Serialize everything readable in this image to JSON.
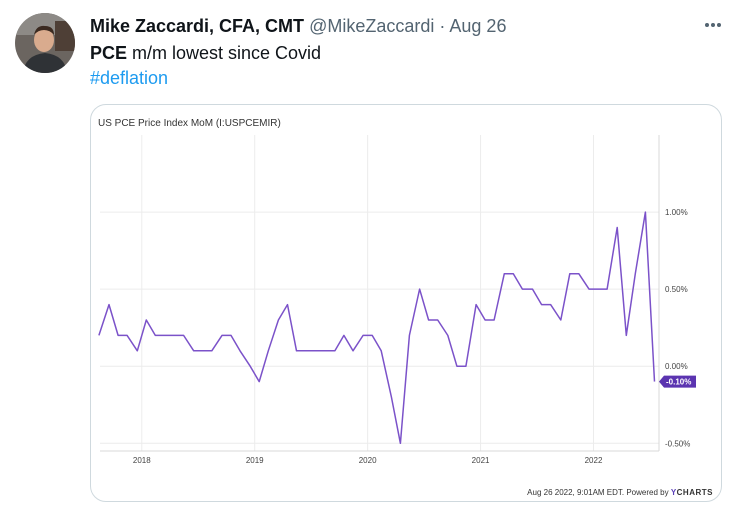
{
  "tweet": {
    "author_name": "Mike Zaccardi, CFA, CMT",
    "handle": "@MikeZaccardi",
    "separator": "·",
    "date": "Aug 26",
    "more_label": "···",
    "text_bold": "PCE",
    "text_rest": " m/m lowest since Covid",
    "hashtag": "#deflation"
  },
  "colors": {
    "series": "#7b52c9",
    "label_bg": "#5b34b0",
    "grid": "#ececec",
    "axis_text": "#444444"
  },
  "footer": {
    "timestamp": "Aug 26 2022, 9:01AM EDT. Powered by ",
    "brand_y": "Y",
    "brand_rest": "CHARTS"
  },
  "chart_data": {
    "type": "line",
    "title": "US PCE Price Index MoM (I:USPCEMIR)",
    "xlabel": "",
    "ylabel": "",
    "x_tick_labels": [
      "2018",
      "2019",
      "2020",
      "2021",
      "2022"
    ],
    "x_tick_values": [
      2018.0,
      2019.0,
      2020.0,
      2021.0,
      2022.0
    ],
    "xlim": [
      2017.63,
      2022.58
    ],
    "ylim": [
      -0.55,
      1.5
    ],
    "y_tick_values": [
      1.0,
      0.5,
      0.0,
      -0.5
    ],
    "y_tick_labels": [
      "1.00%",
      "0.50%",
      "0.00%",
      "-0.50%"
    ],
    "last_value_label": "-0.10%",
    "series": [
      {
        "name": "US PCE Price Index MoM",
        "x": [
          2017.62,
          2017.71,
          2017.79,
          2017.87,
          2017.96,
          2018.04,
          2018.12,
          2018.21,
          2018.29,
          2018.37,
          2018.46,
          2018.54,
          2018.62,
          2018.71,
          2018.79,
          2018.87,
          2018.96,
          2019.04,
          2019.12,
          2019.21,
          2019.29,
          2019.37,
          2019.46,
          2019.54,
          2019.62,
          2019.71,
          2019.79,
          2019.87,
          2019.96,
          2020.04,
          2020.12,
          2020.21,
          2020.29,
          2020.37,
          2020.46,
          2020.54,
          2020.62,
          2020.71,
          2020.79,
          2020.87,
          2020.96,
          2021.04,
          2021.12,
          2021.21,
          2021.29,
          2021.37,
          2021.46,
          2021.54,
          2021.62,
          2021.71,
          2021.79,
          2021.87,
          2021.96,
          2022.04,
          2022.12,
          2022.21,
          2022.29,
          2022.37,
          2022.46,
          2022.54
        ],
        "values": [
          0.2,
          0.4,
          0.2,
          0.2,
          0.1,
          0.3,
          0.2,
          0.2,
          0.2,
          0.2,
          0.1,
          0.1,
          0.1,
          0.2,
          0.2,
          0.1,
          0.0,
          -0.1,
          0.1,
          0.3,
          0.4,
          0.1,
          0.1,
          0.1,
          0.1,
          0.1,
          0.2,
          0.1,
          0.2,
          0.2,
          0.1,
          -0.2,
          -0.5,
          0.2,
          0.5,
          0.3,
          0.3,
          0.2,
          0.0,
          0.0,
          0.4,
          0.3,
          0.3,
          0.6,
          0.6,
          0.5,
          0.5,
          0.4,
          0.4,
          0.3,
          0.6,
          0.6,
          0.5,
          0.5,
          0.5,
          0.9,
          0.2,
          0.6,
          1.0,
          -0.1
        ]
      }
    ]
  }
}
